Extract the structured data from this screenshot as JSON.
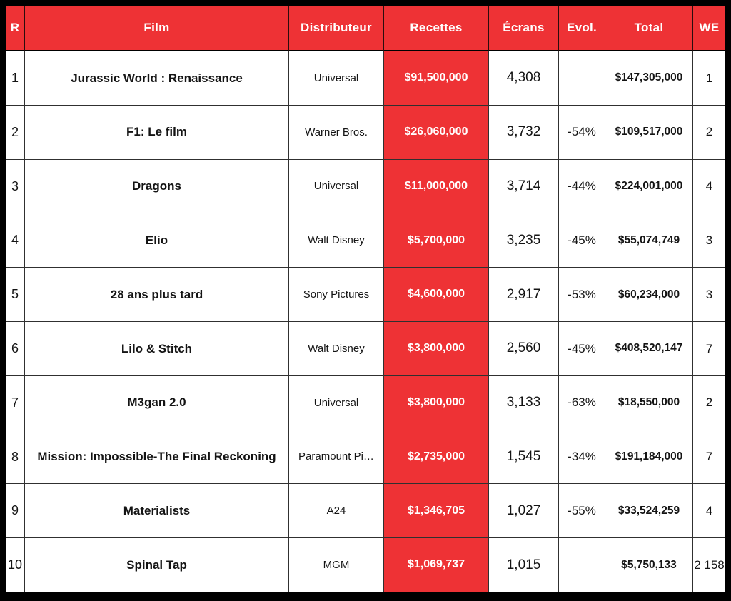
{
  "chart_data": {
    "type": "table",
    "columns": [
      "R",
      "Film",
      "Distributeur",
      "Recettes",
      "Écrans",
      "Evol.",
      "Total",
      "WE"
    ],
    "rows": [
      [
        "1",
        "Jurassic World : Renaissance",
        "Universal",
        "$91,500,000",
        "4,308",
        "",
        "$147,305,000",
        "1"
      ],
      [
        "2",
        "F1: Le film",
        "Warner Bros.",
        "$26,060,000",
        "3,732",
        "-54%",
        "$109,517,000",
        "2"
      ],
      [
        "3",
        "Dragons",
        "Universal",
        "$11,000,000",
        "3,714",
        "-44%",
        "$224,001,000",
        "4"
      ],
      [
        "4",
        "Elio",
        "Walt Disney",
        "$5,700,000",
        "3,235",
        "-45%",
        "$55,074,749",
        "3"
      ],
      [
        "5",
        "28 ans plus tard",
        "Sony Pictures",
        "$4,600,000",
        "2,917",
        "-53%",
        "$60,234,000",
        "3"
      ],
      [
        "6",
        "Lilo & Stitch",
        "Walt Disney",
        "$3,800,000",
        "2,560",
        "-45%",
        "$408,520,147",
        "7"
      ],
      [
        "7",
        "M3gan 2.0",
        "Universal",
        "$3,800,000",
        "3,133",
        "-63%",
        "$18,550,000",
        "2"
      ],
      [
        "8",
        "Mission: Impossible-The Final Reckoning",
        "Paramount Pi…",
        "$2,735,000",
        "1,545",
        "-34%",
        "$191,184,000",
        "7"
      ],
      [
        "9",
        "Materialists",
        "A24",
        "$1,346,705",
        "1,027",
        "-55%",
        "$33,524,259",
        "4"
      ],
      [
        "10",
        "Spinal Tap",
        "MGM",
        "$1,069,737",
        "1,015",
        "",
        "$5,750,133",
        "2 158"
      ]
    ],
    "column_keys": [
      "rank",
      "film",
      "distributor",
      "gross",
      "screens",
      "evolution",
      "total",
      "weeks"
    ],
    "layout": {
      "highlighted_column": "Recettes",
      "header_row": true
    },
    "colors": {
      "accent_red": "#ee3235",
      "header_text": "#ffffff",
      "body_text": "#141414",
      "table_background": "#ffffff",
      "page_background": "#000000",
      "grid_border": "#303030"
    }
  }
}
